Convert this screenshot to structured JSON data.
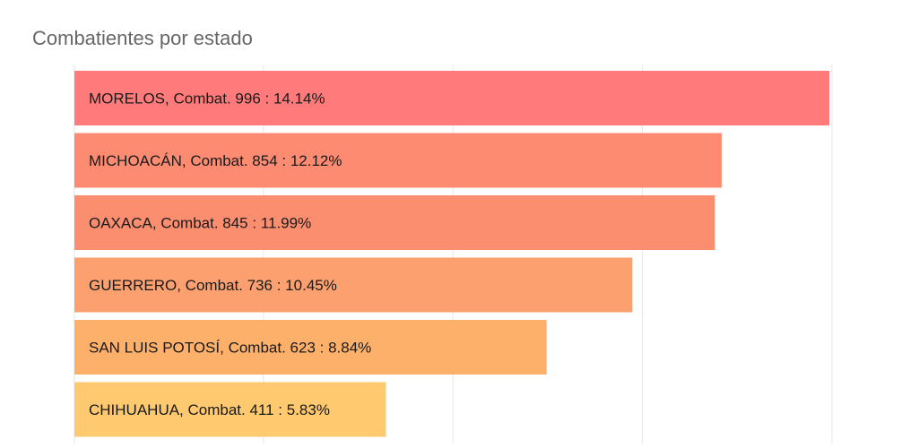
{
  "chart_data": {
    "type": "bar",
    "orientation": "horizontal",
    "title": "Combatientes por estado",
    "xlabel": "",
    "ylabel": "",
    "xlim": [
      0,
      1100
    ],
    "grid": true,
    "legend": "none",
    "categories": [
      "MORELOS",
      "MICHOACÁN",
      "OAXACA",
      "GUERRERO",
      "SAN LUIS POTOSÍ",
      "CHIHUAHUA"
    ],
    "values": [
      996,
      854,
      845,
      736,
      623,
      411
    ],
    "labels": [
      "MORELOS, Combat. 996 : 14.14%",
      "MICHOACÁN, Combat. 854 : 12.12%",
      "OAXACA, Combat. 845 : 11.99%",
      "GUERRERO, Combat. 736 : 10.45%",
      "SAN LUIS POTOSÍ, Combat. 623 : 8.84%",
      "CHIHUAHUA, Combat. 411 : 5.83%"
    ],
    "percentages": [
      14.14,
      12.12,
      11.99,
      10.45,
      8.84,
      5.83
    ],
    "colors": [
      "#ff7b7b",
      "#fc8b72",
      "#fc8e70",
      "#fda070",
      "#fdb06a",
      "#fec96f"
    ]
  }
}
